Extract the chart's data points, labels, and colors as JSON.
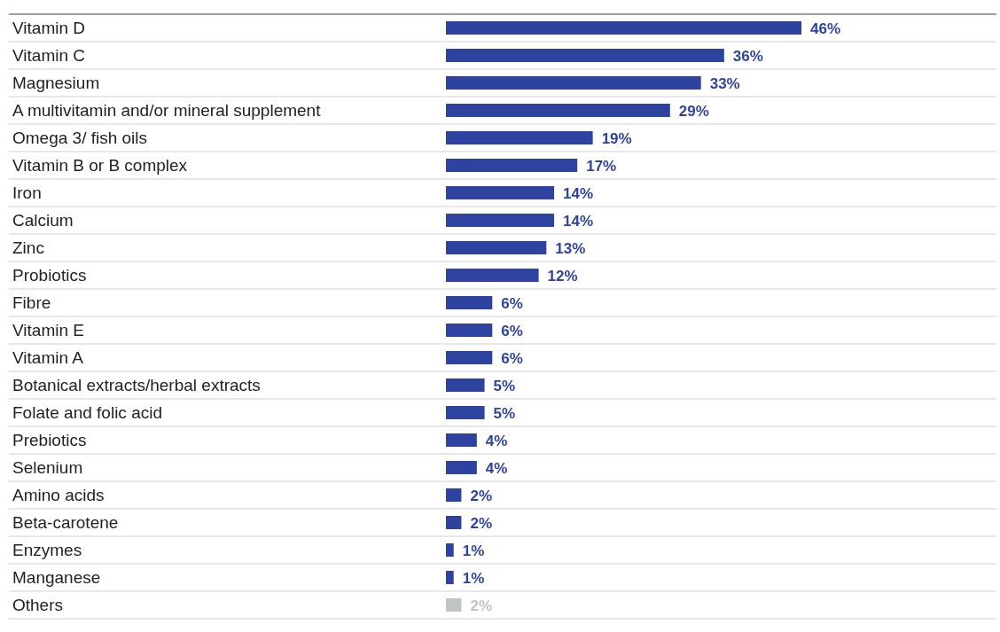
{
  "chart_data": {
    "type": "bar",
    "orientation": "horizontal",
    "value_labels": [
      "46%",
      "36%",
      "33%",
      "29%",
      "19%",
      "17%",
      "14%",
      "14%",
      "13%",
      "12%",
      "6%",
      "6%",
      "6%",
      "5%",
      "5%",
      "4%",
      "4%",
      "2%",
      "2%",
      "1%",
      "1%",
      "2%"
    ],
    "categories": [
      "Vitamin D",
      "Vitamin C",
      "Magnesium",
      "A multivitamin and/or mineral supplement",
      "Omega 3/ fish oils",
      "Vitamin B or B complex",
      "Iron",
      "Calcium",
      "Zinc",
      "Probiotics",
      "Fibre",
      "Vitamin E",
      "Vitamin A",
      "Botanical extracts/herbal extracts",
      "Folate and folic acid",
      "Prebiotics",
      "Selenium",
      "Amino acids",
      "Beta-carotene",
      "Enzymes",
      "Manganese",
      "Others"
    ],
    "values": [
      46,
      36,
      33,
      29,
      19,
      17,
      14,
      14,
      13,
      12,
      6,
      6,
      6,
      5,
      5,
      4,
      4,
      2,
      2,
      1,
      1,
      2
    ],
    "colors": [
      "#2e43a0",
      "#2e43a0",
      "#2e43a0",
      "#2e43a0",
      "#2e43a0",
      "#2e43a0",
      "#2e43a0",
      "#2e43a0",
      "#2e43a0",
      "#2e43a0",
      "#2e43a0",
      "#2e43a0",
      "#2e43a0",
      "#2e43a0",
      "#2e43a0",
      "#2e43a0",
      "#2e43a0",
      "#2e43a0",
      "#2e43a0",
      "#2e43a0",
      "#2e43a0",
      "#c0c4c4"
    ]
  }
}
